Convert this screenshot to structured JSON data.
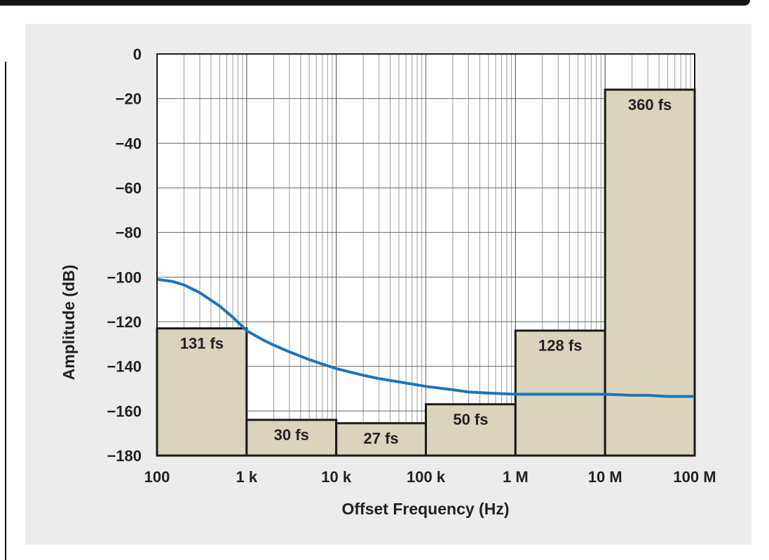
{
  "chart_data": {
    "type": "line",
    "xlabel": "Offset Frequency (Hz)",
    "ylabel": "Amplitude (dB)",
    "xscale": "log",
    "xlim": [
      100,
      100000000
    ],
    "ylim": [
      -180,
      0
    ],
    "grid": true,
    "x_ticks": [
      {
        "value": 100,
        "label": "100"
      },
      {
        "value": 1000,
        "label": "1 k"
      },
      {
        "value": 10000,
        "label": "10 k"
      },
      {
        "value": 100000,
        "label": "100 k"
      },
      {
        "value": 1000000,
        "label": "1 M"
      },
      {
        "value": 10000000,
        "label": "10 M"
      },
      {
        "value": 100000000,
        "label": "100 M"
      }
    ],
    "y_ticks": [
      {
        "value": 0,
        "label": "0"
      },
      {
        "value": -20,
        "label": "−20"
      },
      {
        "value": -40,
        "label": "−40"
      },
      {
        "value": -60,
        "label": "−60"
      },
      {
        "value": -80,
        "label": "−80"
      },
      {
        "value": -100,
        "label": "−100"
      },
      {
        "value": -120,
        "label": "−120"
      },
      {
        "value": -140,
        "label": "−140"
      },
      {
        "value": -160,
        "label": "−160"
      },
      {
        "value": -180,
        "label": "−180"
      }
    ],
    "series": [
      {
        "color": "#1b75bb",
        "x": [
          100,
          150,
          200,
          300,
          500,
          700,
          1000,
          1500,
          2000,
          3000,
          5000,
          7000,
          10000,
          20000,
          30000,
          50000,
          100000,
          200000,
          300000,
          500000,
          1000000,
          2000000,
          5000000,
          10000000,
          20000000,
          30000000,
          50000000,
          100000000
        ],
        "y": [
          -101,
          -102,
          -103.5,
          -107,
          -113,
          -118,
          -124,
          -128,
          -130.5,
          -133.5,
          -137,
          -139,
          -141,
          -144,
          -145.5,
          -147,
          -149,
          -150.5,
          -151.5,
          -152,
          -152.5,
          -152.5,
          -152.5,
          -152.5,
          -153,
          -153,
          -153.5,
          -153.5
        ]
      }
    ],
    "bars": [
      {
        "x_start": 100,
        "x_end": 1000,
        "top": -123,
        "label": "131 fs",
        "color": "#dcd3bd"
      },
      {
        "x_start": 1000,
        "x_end": 10000,
        "top": -164,
        "label": "30 fs",
        "color": "#dcd3bd"
      },
      {
        "x_start": 10000,
        "x_end": 100000,
        "top": -165.5,
        "label": "27 fs",
        "color": "#dcd3bd"
      },
      {
        "x_start": 100000,
        "x_end": 1000000,
        "top": -157,
        "label": "50 fs",
        "color": "#dcd3bd"
      },
      {
        "x_start": 1000000,
        "x_end": 10000000,
        "top": -124,
        "label": "128 fs",
        "color": "#dcd3bd"
      },
      {
        "x_start": 10000000,
        "x_end": 100000000,
        "top": -16,
        "label": "360 fs",
        "color": "#dcd3bd"
      }
    ]
  }
}
